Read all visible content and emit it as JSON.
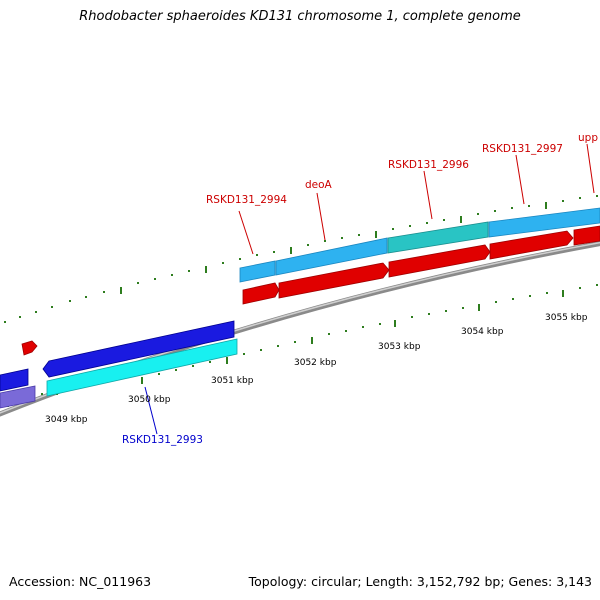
{
  "title": "Rhodobacter sphaeroides KD131 chromosome 1, complete genome",
  "footer": {
    "accession": "Accession: NC_011963",
    "summary": "Topology: circular; Length: 3,152,792 bp; Genes: 3,143"
  },
  "colors": {
    "backbone": "#8a8a8a",
    "tick": "#2e7d1e",
    "forward_label": "#cc0000",
    "reverse_label": "#0000cc",
    "cds_forward": "#e00000",
    "cds_reverse": "#1a1ae0",
    "cds_light_blue": "#2eb2f0",
    "cds_teal": "#29c4c4",
    "cds_cyan": "#18f0f0",
    "cds_lavender": "#7a6ad8"
  },
  "kbp_labels": [
    "3049 kbp",
    "3050 kbp",
    "3051 kbp",
    "3052 kbp",
    "3053 kbp",
    "3054 kbp",
    "3055 kbp"
  ],
  "gene_labels": [
    {
      "name": "RSKD131_2994",
      "strand": "forward"
    },
    {
      "name": "deoA",
      "strand": "forward"
    },
    {
      "name": "RSKD131_2996",
      "strand": "forward"
    },
    {
      "name": "RSKD131_2997",
      "strand": "forward"
    },
    {
      "name": "upp",
      "strand": "forward"
    },
    {
      "name": "RSKD131_2993",
      "strand": "reverse"
    }
  ]
}
